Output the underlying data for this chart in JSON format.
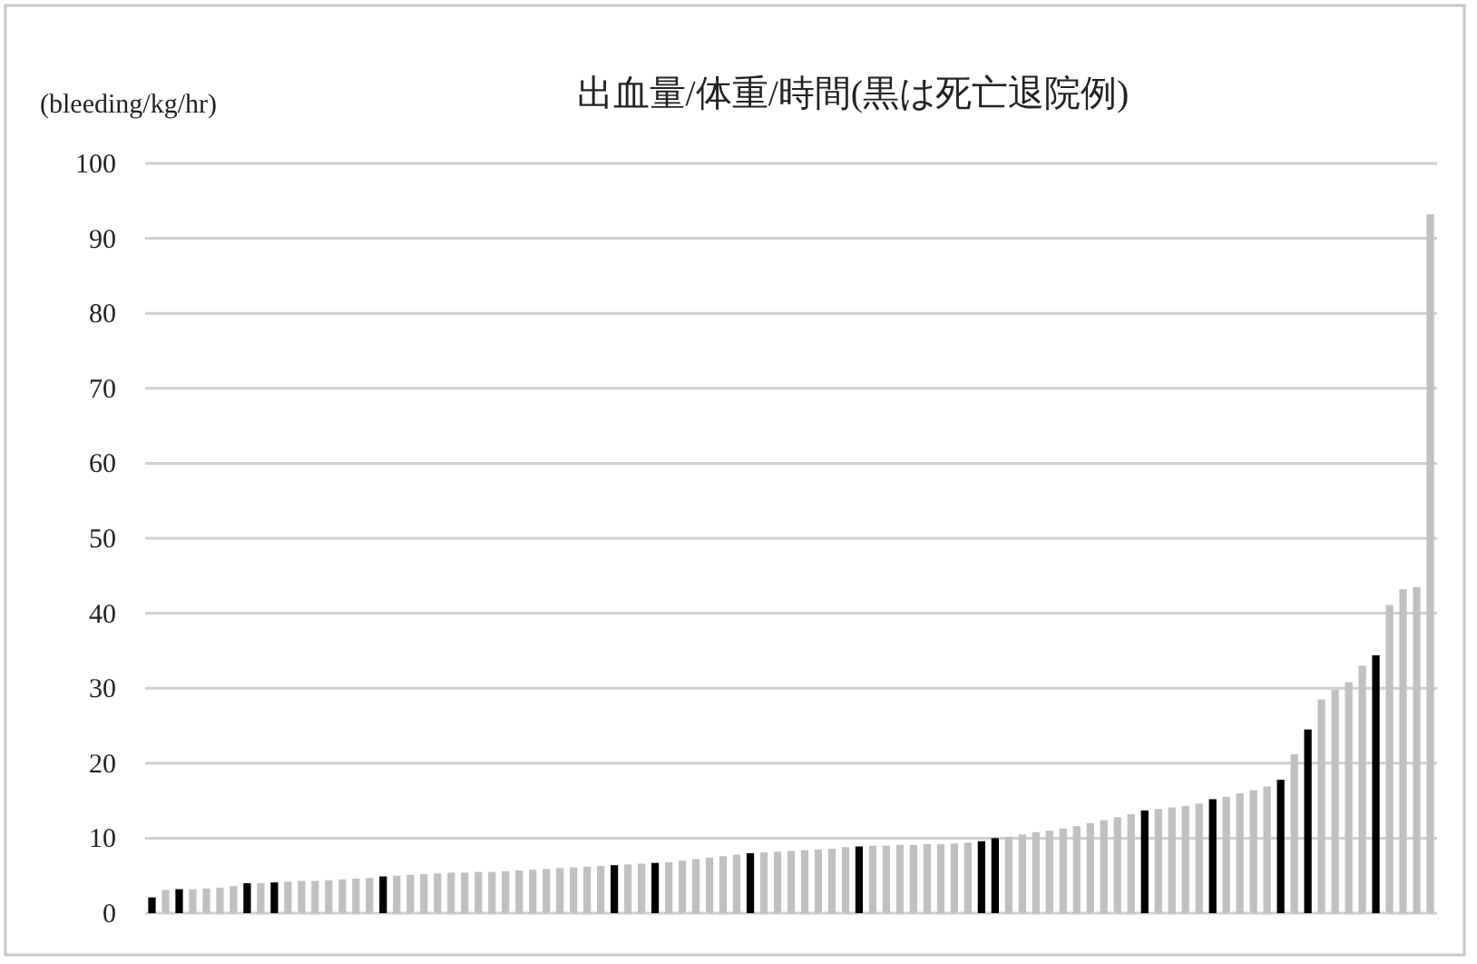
{
  "chart_data": {
    "type": "bar",
    "title": "出血量/体重/時間(黒は死亡退院例)",
    "ylabel": "(bleeding/kg/hr)",
    "categories": [
      null,
      null,
      null,
      null,
      null,
      null,
      null,
      null,
      null,
      null,
      null,
      null,
      null,
      null,
      null,
      null,
      null,
      null,
      null,
      null,
      null,
      null,
      null,
      null,
      null,
      null,
      null,
      null,
      null,
      null,
      null,
      null,
      null,
      null,
      null,
      null,
      null,
      null,
      null,
      null,
      null,
      null,
      null,
      null,
      null,
      null,
      null,
      null,
      null,
      null,
      null,
      null,
      null,
      null,
      null,
      null,
      null,
      null,
      null,
      null,
      null,
      null,
      null,
      null,
      null,
      null,
      null,
      null,
      null,
      null,
      null,
      null,
      null,
      null,
      null,
      null,
      null,
      null,
      null,
      null,
      null,
      null,
      null,
      null,
      null,
      null,
      null,
      null,
      null,
      null,
      null,
      null,
      null,
      null,
      null
    ],
    "values": [
      2.1,
      3.1,
      3.2,
      3.2,
      3.3,
      3.4,
      3.6,
      4.0,
      4.0,
      4.1,
      4.2,
      4.3,
      4.3,
      4.4,
      4.5,
      4.6,
      4.7,
      4.9,
      5.0,
      5.1,
      5.2,
      5.3,
      5.4,
      5.4,
      5.5,
      5.5,
      5.6,
      5.7,
      5.8,
      5.9,
      6.0,
      6.1,
      6.2,
      6.3,
      6.4,
      6.5,
      6.6,
      6.7,
      6.8,
      7.0,
      7.2,
      7.4,
      7.6,
      7.8,
      8.0,
      8.1,
      8.2,
      8.3,
      8.4,
      8.5,
      8.6,
      8.8,
      8.9,
      9.0,
      9.0,
      9.1,
      9.1,
      9.2,
      9.2,
      9.3,
      9.4,
      9.6,
      10.0,
      10.2,
      10.5,
      10.8,
      11.0,
      11.3,
      11.6,
      12.0,
      12.4,
      12.8,
      13.2,
      13.7,
      13.9,
      14.1,
      14.3,
      14.6,
      15.2,
      15.5,
      16.0,
      16.4,
      16.9,
      17.8,
      21.2,
      24.5,
      28.5,
      29.8,
      30.8,
      33.0,
      34.4,
      41.1,
      43.2,
      43.5,
      93.2
    ],
    "colors": [
      "#000000",
      "#c0c0c0",
      "#000000",
      "#c0c0c0",
      "#c0c0c0",
      "#c0c0c0",
      "#c0c0c0",
      "#000000",
      "#c0c0c0",
      "#000000",
      "#c0c0c0",
      "#c0c0c0",
      "#c0c0c0",
      "#c0c0c0",
      "#c0c0c0",
      "#c0c0c0",
      "#c0c0c0",
      "#000000",
      "#c0c0c0",
      "#c0c0c0",
      "#c0c0c0",
      "#c0c0c0",
      "#c0c0c0",
      "#c0c0c0",
      "#c0c0c0",
      "#c0c0c0",
      "#c0c0c0",
      "#c0c0c0",
      "#c0c0c0",
      "#c0c0c0",
      "#c0c0c0",
      "#c0c0c0",
      "#c0c0c0",
      "#c0c0c0",
      "#000000",
      "#c0c0c0",
      "#c0c0c0",
      "#000000",
      "#c0c0c0",
      "#c0c0c0",
      "#c0c0c0",
      "#c0c0c0",
      "#c0c0c0",
      "#c0c0c0",
      "#000000",
      "#c0c0c0",
      "#c0c0c0",
      "#c0c0c0",
      "#c0c0c0",
      "#c0c0c0",
      "#c0c0c0",
      "#c0c0c0",
      "#000000",
      "#c0c0c0",
      "#c0c0c0",
      "#c0c0c0",
      "#c0c0c0",
      "#c0c0c0",
      "#c0c0c0",
      "#c0c0c0",
      "#c0c0c0",
      "#000000",
      "#000000",
      "#c0c0c0",
      "#c0c0c0",
      "#c0c0c0",
      "#c0c0c0",
      "#c0c0c0",
      "#c0c0c0",
      "#c0c0c0",
      "#c0c0c0",
      "#c0c0c0",
      "#c0c0c0",
      "#000000",
      "#c0c0c0",
      "#c0c0c0",
      "#c0c0c0",
      "#c0c0c0",
      "#000000",
      "#c0c0c0",
      "#c0c0c0",
      "#c0c0c0",
      "#c0c0c0",
      "#000000",
      "#c0c0c0",
      "#000000",
      "#c0c0c0",
      "#c0c0c0",
      "#c0c0c0",
      "#c0c0c0",
      "#000000",
      "#c0c0c0",
      "#c0c0c0",
      "#c0c0c0",
      "#c0c0c0"
    ],
    "ylim": [
      0,
      100
    ],
    "yticks": [
      0,
      10,
      20,
      30,
      40,
      50,
      60,
      70,
      80,
      90,
      100
    ],
    "grid": "y"
  }
}
